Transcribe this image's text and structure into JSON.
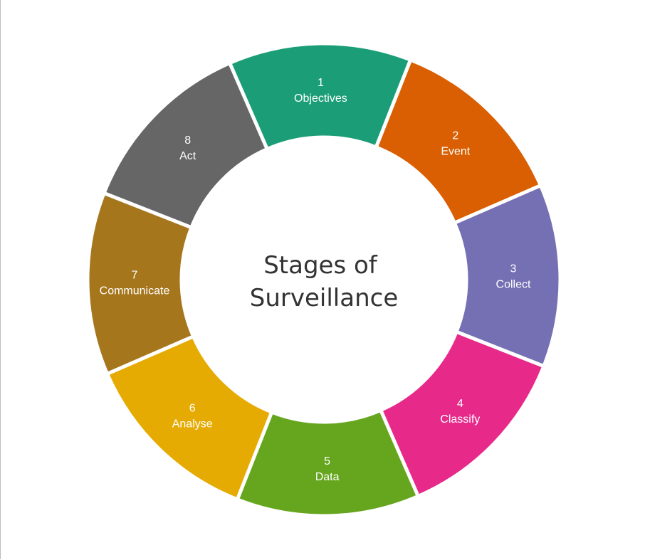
{
  "diagram": {
    "title_lines": [
      "Stages of",
      "Surveillance"
    ],
    "stages": [
      {
        "number": "1",
        "name": "Objectives",
        "color": "#1b9e77"
      },
      {
        "number": "2",
        "name": "Event",
        "color": "#d95f02"
      },
      {
        "number": "3",
        "name": "Collect",
        "color": "#7570b3"
      },
      {
        "number": "4",
        "name": "Classify",
        "color": "#e7298a"
      },
      {
        "number": "5",
        "name": "Data",
        "color": "#66a61e"
      },
      {
        "number": "6",
        "name": "Analyse",
        "color": "#e6ab02"
      },
      {
        "number": "7",
        "name": "Communicate",
        "color": "#a6761d"
      },
      {
        "number": "8",
        "name": "Act",
        "color": "#666666"
      }
    ],
    "center_color": "#ffffff",
    "separator_color": "#ffffff"
  }
}
